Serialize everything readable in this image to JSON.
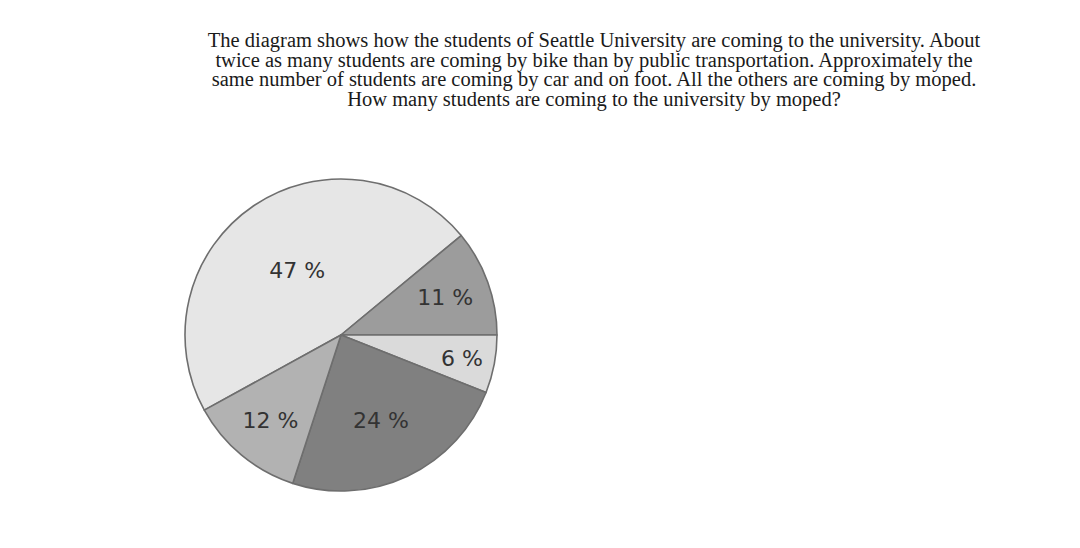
{
  "question": {
    "lines": [
      "The diagram shows how the students of Seattle University are coming to the university. About",
      "twice as many students are coming by bike than by public transportation. Approximately the",
      "same number of students are coming by car and on foot. All the others are coming by moped.",
      "How many students are coming to the university by moped?"
    ]
  },
  "chart_data": {
    "type": "pie",
    "values": [
      47,
      11,
      6,
      24,
      12
    ],
    "value_labels": [
      "47 %",
      "11 %",
      "6 %",
      "24 %",
      "12 %"
    ],
    "colors": [
      "#e6e6e6",
      "#9c9c9c",
      "#dadada",
      "#808080",
      "#b2b2b2"
    ],
    "data_labels": true
  }
}
